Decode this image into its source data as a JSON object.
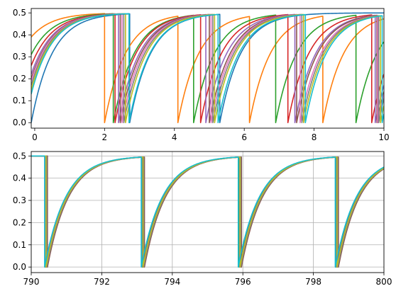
{
  "chart_data": [
    {
      "type": "line",
      "title": "",
      "xlabel": "",
      "ylabel": "",
      "xlim": [
        -0.1,
        10
      ],
      "ylim": [
        -0.025,
        0.52
      ],
      "grid": false,
      "x_ticks": [
        0,
        2,
        4,
        6,
        8,
        10
      ],
      "x_tick_labels": [
        "0",
        "2",
        "4",
        "6",
        "8",
        "10"
      ],
      "y_ticks": [
        0.0,
        0.1,
        0.2,
        0.3,
        0.4,
        0.5
      ],
      "y_tick_labels": [
        "0.0",
        "0.1",
        "0.2",
        "0.3",
        "0.4",
        "0.5"
      ],
      "model": {
        "kind": "exponential_relaxation_with_reset",
        "plateau": 0.5,
        "tau": 0.6
      },
      "series": [
        {
          "color": "#1f77b4",
          "y0": 0.0,
          "resets": [
            2.72,
            5.3
          ]
        },
        {
          "color": "#ff7f0e",
          "y0": 0.39,
          "resets": [
            2.0,
            4.1,
            6.15,
            8.25
          ]
        },
        {
          "color": "#2ca02c",
          "y0": 0.31,
          "resets": [
            2.25,
            4.55,
            6.9,
            9.2
          ]
        },
        {
          "color": "#d62728",
          "y0": 0.26,
          "resets": [
            2.3,
            4.75,
            7.25,
            9.65
          ]
        },
        {
          "color": "#9467bd",
          "y0": 0.22,
          "resets": [
            2.4,
            4.9,
            7.45,
            9.75
          ]
        },
        {
          "color": "#8c564b",
          "y0": 0.2,
          "resets": [
            2.45,
            5.0,
            7.5,
            9.8
          ]
        },
        {
          "color": "#e377c2",
          "y0": 0.19,
          "resets": [
            2.5,
            5.05,
            7.6,
            9.82
          ]
        },
        {
          "color": "#7f7f7f",
          "y0": 0.17,
          "resets": [
            2.55,
            5.1,
            7.65,
            9.85
          ]
        },
        {
          "color": "#bcbd22",
          "y0": 0.15,
          "resets": [
            2.6,
            5.15,
            7.7,
            9.9
          ]
        },
        {
          "color": "#17becf",
          "y0": 0.13,
          "resets": [
            2.7,
            5.25,
            7.75,
            9.95
          ]
        }
      ]
    },
    {
      "type": "line",
      "title": "",
      "xlabel": "",
      "ylabel": "",
      "xlim": [
        790,
        800
      ],
      "ylim": [
        -0.025,
        0.52
      ],
      "grid": true,
      "x_ticks": [
        790,
        792,
        794,
        796,
        798,
        800
      ],
      "x_tick_labels": [
        "790",
        "792",
        "794",
        "796",
        "798",
        "800"
      ],
      "y_ticks": [
        0.0,
        0.1,
        0.2,
        0.3,
        0.4,
        0.5
      ],
      "y_tick_labels": [
        "0.0",
        "0.1",
        "0.2",
        "0.3",
        "0.4",
        "0.5"
      ],
      "model": {
        "kind": "exponential_relaxation_with_reset",
        "plateau": 0.5,
        "tau": 0.6
      },
      "series": [
        {
          "color": "#1f77b4",
          "y0": 0.5,
          "resets": [
            790.4,
            793.15,
            795.9,
            798.65
          ]
        },
        {
          "color": "#ff7f0e",
          "y0": 0.5,
          "resets": [
            790.45,
            793.2,
            795.95,
            798.7
          ]
        },
        {
          "color": "#2ca02c",
          "y0": 0.5,
          "resets": [
            790.4,
            793.15,
            795.9,
            798.65
          ]
        },
        {
          "color": "#d62728",
          "y0": 0.5,
          "resets": [
            790.42,
            793.17,
            795.92,
            798.67
          ]
        },
        {
          "color": "#9467bd",
          "y0": 0.5,
          "resets": [
            790.41,
            793.16,
            795.91,
            798.66
          ]
        },
        {
          "color": "#8c564b",
          "y0": 0.5,
          "resets": [
            790.46,
            793.21,
            795.96,
            798.71
          ]
        },
        {
          "color": "#e377c2",
          "y0": 0.5,
          "resets": [
            790.43,
            793.18,
            795.93,
            798.68
          ]
        },
        {
          "color": "#7f7f7f",
          "y0": 0.5,
          "resets": [
            790.44,
            793.19,
            795.94,
            798.69
          ]
        },
        {
          "color": "#bcbd22",
          "y0": 0.5,
          "resets": [
            790.42,
            793.17,
            795.92,
            798.67
          ]
        },
        {
          "color": "#17becf",
          "y0": 0.5,
          "resets": [
            790.38,
            793.12,
            795.87,
            798.62
          ]
        }
      ]
    }
  ]
}
